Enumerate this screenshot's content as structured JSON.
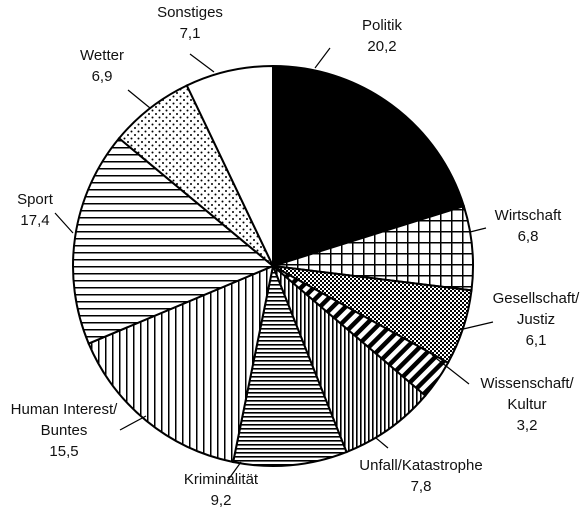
{
  "chart_data": {
    "type": "pie",
    "title": "",
    "start_angle_deg": 0,
    "direction": "clockwise",
    "slices": [
      {
        "label_lines": [
          "Politik"
        ],
        "value": 20.2,
        "value_text": "20,2",
        "pattern": "solid-black"
      },
      {
        "label_lines": [
          "Wirtschaft"
        ],
        "value": 6.8,
        "value_text": "6,8",
        "pattern": "grid"
      },
      {
        "label_lines": [
          "Gesellschaft/",
          "Justiz"
        ],
        "value": 6.1,
        "value_text": "6,1",
        "pattern": "checker"
      },
      {
        "label_lines": [
          "Wissenschaft/",
          "Kultur"
        ],
        "value": 3.2,
        "value_text": "3,2",
        "pattern": "diagonal-hatch"
      },
      {
        "label_lines": [
          "Unfall/Katastrophe"
        ],
        "value": 7.8,
        "value_text": "7,8",
        "pattern": "vertical-lines"
      },
      {
        "label_lines": [
          "Kriminalität"
        ],
        "value": 9.2,
        "value_text": "9,2",
        "pattern": "horizontal-lines"
      },
      {
        "label_lines": [
          "Human Interest/",
          "Buntes"
        ],
        "value": 15.5,
        "value_text": "15,5",
        "pattern": "vertical-lines-sparse"
      },
      {
        "label_lines": [
          "Sport"
        ],
        "value": 17.4,
        "value_text": "17,4",
        "pattern": "horizontal-lines-sparse"
      },
      {
        "label_lines": [
          "Wetter"
        ],
        "value": 6.9,
        "value_text": "6,9",
        "pattern": "dots"
      },
      {
        "label_lines": [
          "Sonstiges"
        ],
        "value": 7.1,
        "value_text": "7,1",
        "pattern": "white"
      }
    ]
  }
}
